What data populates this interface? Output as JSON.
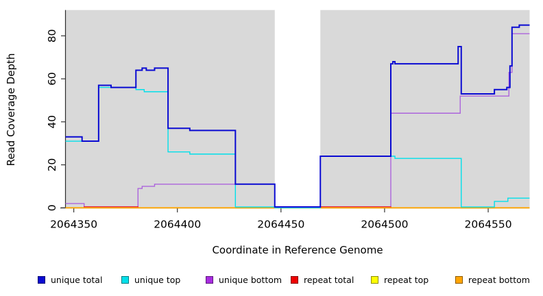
{
  "chart_data": {
    "type": "line",
    "subtype": "step-after",
    "title": "",
    "xlabel": "Coordinate in Reference Genome",
    "ylabel": "Read Coverage Depth",
    "xlim": [
      2064346,
      2064570
    ],
    "ylim": [
      0,
      92
    ],
    "x_ticks": [
      2064350,
      2064400,
      2064450,
      2064500,
      2064550
    ],
    "y_ticks": [
      0,
      20,
      40,
      60,
      80
    ],
    "grid": false,
    "background": {
      "plot_color": "#D9D9D9",
      "page_color": "#FFFFFF",
      "covered_x_ranges": [
        [
          2064346,
          2064447
        ],
        [
          2064469,
          2064570
        ]
      ],
      "no_data_gap_x": [
        2064447,
        2064469
      ]
    },
    "series": [
      {
        "name": "unique bottom",
        "color": "#AC64DC",
        "width": 1.4,
        "points": [
          [
            2064346,
            2
          ],
          [
            2064355,
            0
          ],
          [
            2064381,
            9
          ],
          [
            2064383,
            10
          ],
          [
            2064389,
            11
          ],
          [
            2064447,
            0.4
          ],
          [
            2064469,
            0
          ],
          [
            2064503,
            44
          ],
          [
            2064536.5,
            52
          ],
          [
            2064560,
            63
          ],
          [
            2064561.5,
            81
          ]
        ]
      },
      {
        "name": "repeat total",
        "color": "#E02848",
        "width": 1.4,
        "points": [
          [
            2064346,
            0
          ],
          [
            2064355,
            0.5
          ],
          [
            2064381,
            0
          ],
          [
            2064469,
            0.5
          ],
          [
            2064503,
            0
          ]
        ]
      },
      {
        "name": "repeat top",
        "color": "#FFFF00",
        "width": 1.4,
        "points": [
          [
            2064346,
            0
          ]
        ]
      },
      {
        "name": "repeat bottom",
        "color": "#FFA500",
        "width": 1.8,
        "points": [
          [
            2064346,
            0
          ]
        ]
      },
      {
        "name": "unique top",
        "color": "#00E0EA",
        "width": 1.4,
        "points": [
          [
            2064346,
            31
          ],
          [
            2064362,
            56
          ],
          [
            2064380,
            55
          ],
          [
            2064384,
            54
          ],
          [
            2064395.5,
            26
          ],
          [
            2064406,
            25
          ],
          [
            2064428,
            0.4
          ],
          [
            2064447,
            0
          ],
          [
            2064469,
            24
          ],
          [
            2064505,
            23
          ],
          [
            2064537,
            0.4
          ],
          [
            2064553,
            3
          ],
          [
            2064559.5,
            4.5
          ]
        ]
      },
      {
        "name": "unique total",
        "color": "#0A0AD2",
        "width": 2,
        "points": [
          [
            2064346,
            33
          ],
          [
            2064354,
            31
          ],
          [
            2064362,
            57
          ],
          [
            2064368,
            56
          ],
          [
            2064380,
            64
          ],
          [
            2064383,
            65
          ],
          [
            2064385,
            64
          ],
          [
            2064389,
            65
          ],
          [
            2064395.5,
            37
          ],
          [
            2064406,
            36
          ],
          [
            2064428,
            11
          ],
          [
            2064447,
            0.4
          ],
          [
            2064469,
            24
          ],
          [
            2064503,
            67
          ],
          [
            2064504,
            68
          ],
          [
            2064505,
            67
          ],
          [
            2064535.5,
            75
          ],
          [
            2064537,
            53
          ],
          [
            2064553,
            55
          ],
          [
            2064559,
            56
          ],
          [
            2064560.5,
            66
          ],
          [
            2064561.5,
            84
          ],
          [
            2064565,
            85
          ]
        ]
      }
    ],
    "legend": [
      {
        "label": "unique total",
        "color": "#0A0AD2"
      },
      {
        "label": "unique top",
        "color": "#00E0EA"
      },
      {
        "label": "unique bottom",
        "color": "#A82CE0"
      },
      {
        "label": "repeat total",
        "color": "#EE0000"
      },
      {
        "label": "repeat top",
        "color": "#FFFF00"
      },
      {
        "label": "repeat bottom",
        "color": "#FFA500"
      }
    ],
    "legend_position": "bottom"
  }
}
